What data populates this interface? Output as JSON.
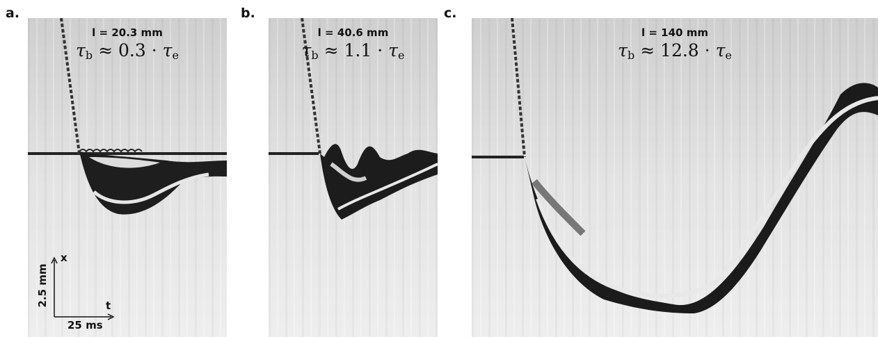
{
  "panels": [
    {
      "letter": "a.",
      "length": "l = 20.3 mm",
      "tau": {
        "sym": "τ",
        "sub": "b",
        "rel": "≈",
        "value": "0.3",
        "dot": "·",
        "sym2": "τ",
        "sub2": "e"
      }
    },
    {
      "letter": "b.",
      "length": "l = 40.6 mm",
      "tau": {
        "sym": "τ",
        "sub": "b",
        "rel": "≈",
        "value": "1.1",
        "dot": "·",
        "sym2": "τ",
        "sub2": "e"
      }
    },
    {
      "letter": "c.",
      "length": "l = 140 mm",
      "tau": {
        "sym": "τ",
        "sub": "b",
        "rel": "≈",
        "value": "12.8",
        "dot": "·",
        "sym2": "τ",
        "sub2": "e"
      }
    }
  ],
  "scale_bar": {
    "x_axis": "t",
    "y_axis": "x",
    "time_label": "25 ms",
    "length_label": "2.5 mm"
  }
}
